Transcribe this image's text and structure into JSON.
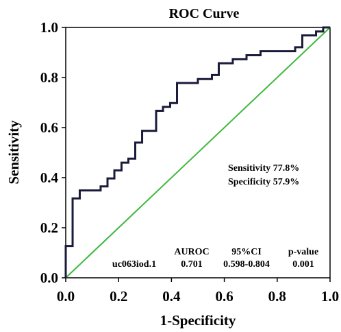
{
  "chart_data": {
    "type": "line",
    "title": "ROC Curve",
    "xlabel": "1-Specificity",
    "ylabel": "Sensitivity",
    "xlim": [
      0.0,
      1.0
    ],
    "ylim": [
      0.0,
      1.0
    ],
    "xticks": [
      0.0,
      0.2,
      0.4,
      0.6,
      0.8,
      1.0
    ],
    "yticks": [
      0.0,
      0.2,
      0.4,
      0.6,
      0.8,
      1.0
    ],
    "xtick_labels": [
      "0.0",
      "0.2",
      "0.4",
      "0.6",
      "0.8",
      "1.0"
    ],
    "ytick_labels": [
      "0.0",
      "0.2",
      "0.4",
      "0.6",
      "0.8",
      "1.0"
    ],
    "grid": false,
    "series": [
      {
        "name": "uc063iod.1",
        "color": "#1a1a3a",
        "x": [
          0.0,
          0.0,
          0.026,
          0.026,
          0.053,
          0.053,
          0.132,
          0.132,
          0.158,
          0.158,
          0.184,
          0.184,
          0.211,
          0.211,
          0.237,
          0.237,
          0.263,
          0.263,
          0.289,
          0.289,
          0.342,
          0.342,
          0.368,
          0.368,
          0.395,
          0.395,
          0.421,
          0.421,
          0.5,
          0.5,
          0.553,
          0.553,
          0.579,
          0.579,
          0.632,
          0.632,
          0.684,
          0.684,
          0.737,
          0.737,
          0.868,
          0.868,
          0.895,
          0.895,
          0.947,
          0.947,
          0.974,
          0.974,
          1.0
        ],
        "y": [
          0.0,
          0.127,
          0.127,
          0.317,
          0.317,
          0.349,
          0.349,
          0.365,
          0.365,
          0.397,
          0.397,
          0.429,
          0.429,
          0.46,
          0.46,
          0.476,
          0.476,
          0.54,
          0.54,
          0.587,
          0.587,
          0.667,
          0.667,
          0.683,
          0.683,
          0.698,
          0.698,
          0.778,
          0.778,
          0.794,
          0.794,
          0.81,
          0.81,
          0.857,
          0.857,
          0.873,
          0.873,
          0.889,
          0.889,
          0.905,
          0.905,
          0.921,
          0.921,
          0.968,
          0.968,
          0.984,
          0.984,
          1.0,
          1.0
        ]
      },
      {
        "color": "#3db83d",
        "x": [
          0.0,
          1.0
        ],
        "y": [
          0.0,
          1.0
        ]
      }
    ],
    "annotations": {
      "sensitivity": "Sensitivity 77.8%",
      "specificity": "Specificity 57.9%"
    },
    "table": {
      "headers": [
        "AUROC",
        "95%CI",
        "p-value"
      ],
      "row_label": "uc063iod.1",
      "values": [
        "0.701",
        "0.598-0.804",
        "0.001"
      ]
    }
  }
}
